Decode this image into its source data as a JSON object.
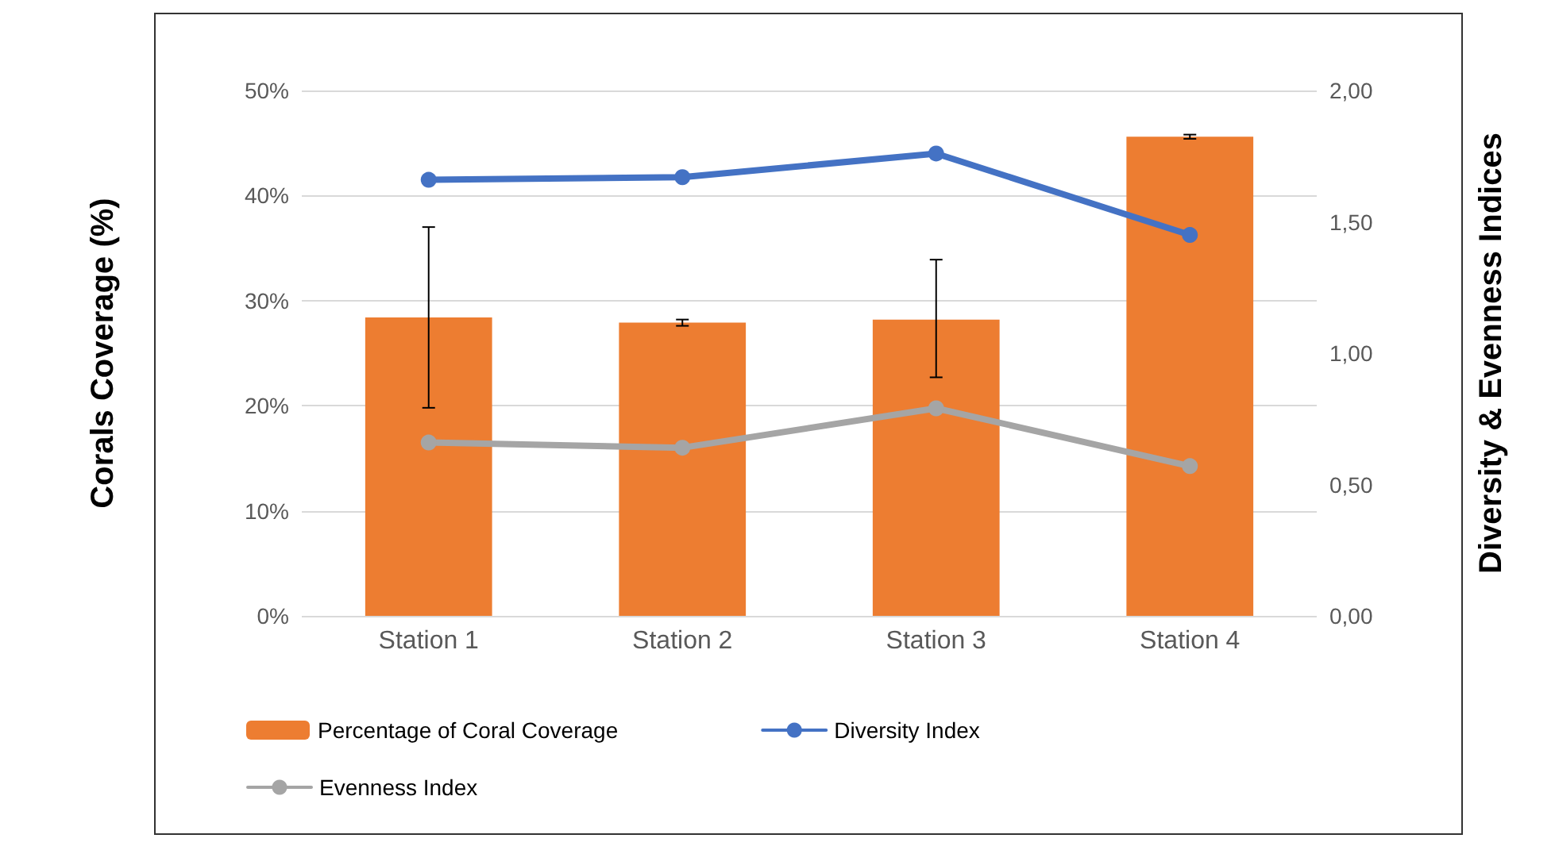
{
  "chart_data": {
    "type": "bar",
    "ylabel": "Corals Coverage (%)",
    "y2label": "Diversity & Evenness Indices",
    "categories": [
      "Station 1",
      "Station 2",
      "Station 3",
      "Station 4"
    ],
    "series": [
      {
        "name": "Percentage of Coral Coverage",
        "color": "#ed7d31",
        "values": [
          28.4,
          27.9,
          28.2,
          45.6
        ],
        "errors": [
          [
            19.8,
            37.0
          ],
          0.3,
          [
            22.7,
            33.9
          ],
          0.2
        ]
      },
      {
        "name": "Diversity Index",
        "type": "line",
        "axis": "y2",
        "color": "#4472c4",
        "values": [
          1.66,
          1.67,
          1.76,
          1.45
        ]
      },
      {
        "name": "Evenness Index",
        "type": "line",
        "axis": "y2",
        "color": "#a5a5a5",
        "values": [
          0.66,
          0.64,
          0.79,
          0.57
        ]
      }
    ],
    "ylim": [
      0,
      50
    ],
    "yticks": [
      {
        "value": 0,
        "label": "0%"
      },
      {
        "value": 10,
        "label": "10%"
      },
      {
        "value": 20,
        "label": "20%"
      },
      {
        "value": 30,
        "label": "30%"
      },
      {
        "value": 40,
        "label": "40%"
      },
      {
        "value": 50,
        "label": "50%"
      }
    ],
    "y2lim": [
      0,
      2
    ],
    "y2ticks": [
      {
        "value": 0,
        "label": "0,00"
      },
      {
        "value": 0.5,
        "label": "0,50"
      },
      {
        "value": 1,
        "label": "1,00"
      },
      {
        "value": 1.5,
        "label": "1,50"
      },
      {
        "value": 2,
        "label": "2,00"
      }
    ],
    "grid": "y",
    "legend": "bottom",
    "marker": "circle",
    "line_style": "solid"
  }
}
